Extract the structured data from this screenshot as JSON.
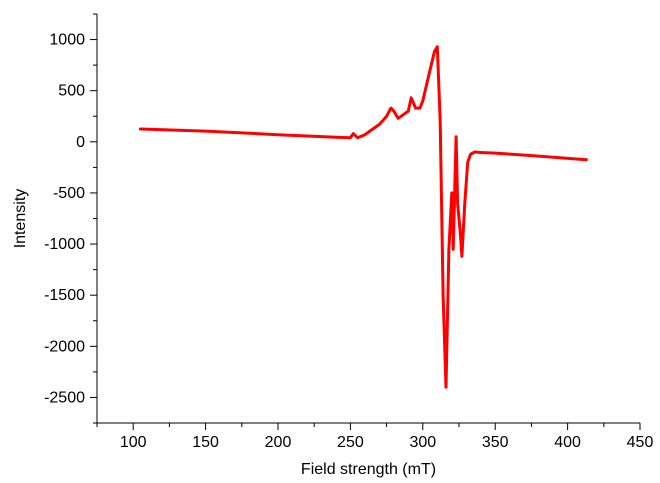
{
  "chart_data": {
    "type": "line",
    "title": "",
    "xlabel": "Field strength (mT)",
    "ylabel": "Intensity",
    "xlim": [
      75,
      450
    ],
    "ylim": [
      -2750,
      1250
    ],
    "x_ticks": [
      100,
      150,
      200,
      250,
      300,
      350,
      400,
      450
    ],
    "y_ticks": [
      1000,
      500,
      0,
      -500,
      -1000,
      -1500,
      -2000,
      -2500
    ],
    "x_minor_step": 25,
    "y_minor_step": 250,
    "grid": false,
    "legend": "none",
    "series": [
      {
        "color": "#ff0000",
        "x": [
          105,
          150,
          200,
          240,
          250,
          252,
          255,
          260,
          265,
          270,
          275,
          278,
          280,
          283,
          290,
          292,
          295,
          298,
          300,
          305,
          308,
          310,
          312,
          314,
          316,
          318,
          320,
          321,
          323,
          324,
          326,
          327,
          329,
          331,
          333,
          336,
          340,
          350,
          380,
          413
        ],
        "y": [
          125,
          105,
          70,
          45,
          40,
          80,
          40,
          70,
          120,
          170,
          250,
          330,
          300,
          230,
          300,
          430,
          330,
          330,
          400,
          700,
          880,
          930,
          200,
          -1500,
          -2400,
          -1050,
          -500,
          -1050,
          50,
          -600,
          -900,
          -1120,
          -600,
          -200,
          -120,
          -100,
          -105,
          -110,
          -140,
          -175
        ]
      }
    ]
  }
}
